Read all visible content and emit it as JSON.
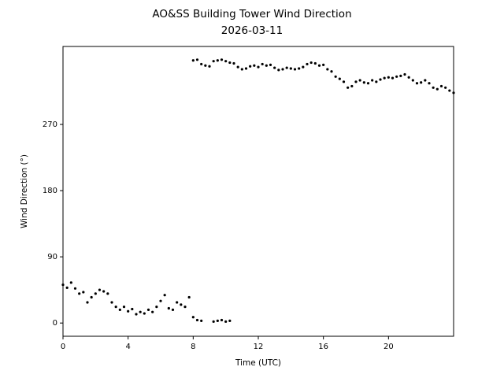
{
  "chart_data": {
    "type": "scatter",
    "title": "AO&SS Building Tower Wind Direction",
    "subtitle": "2026-03-11",
    "x_label": "Time (UTC)",
    "y_label": "Wind Direction (°)",
    "xlim": [
      0,
      24
    ],
    "ylim": [
      -18,
      376
    ],
    "xticks": [
      0,
      4,
      8,
      12,
      16,
      20
    ],
    "yticks": [
      0,
      90,
      180,
      270
    ],
    "series": [
      {
        "color": "#000000",
        "x": [
          0,
          0.25,
          0.5,
          0.75,
          1,
          1.25,
          1.5,
          1.75,
          2,
          2.25,
          2.5,
          2.75,
          3,
          3.25,
          3.5,
          3.75,
          4,
          4.25,
          4.5,
          4.75,
          5,
          5.25,
          5.5,
          5.75,
          6,
          6.25,
          6.5,
          6.75,
          7,
          7.25,
          7.5,
          7.75,
          8,
          8.25,
          8.5,
          9.25,
          9.5,
          9.75,
          10,
          10.25,
          8,
          8.25,
          8.5,
          8.75,
          9,
          9.25,
          9.5,
          9.75,
          10,
          10.25,
          10.5,
          10.75,
          11,
          11.25,
          11.5,
          11.75,
          12,
          12.25,
          12.5,
          12.75,
          13,
          13.25,
          13.5,
          13.75,
          14,
          14.25,
          14.5,
          14.75,
          15,
          15.25,
          15.5,
          15.75,
          16,
          16.25,
          16.5,
          16.75,
          17,
          17.25,
          17.5,
          17.75,
          18,
          18.25,
          18.5,
          18.75,
          19,
          19.25,
          19.5,
          19.75,
          20,
          20.25,
          20.5,
          20.75,
          21,
          21.25,
          21.5,
          21.75,
          22,
          22.25,
          22.5,
          22.75,
          23,
          23.25,
          23.5,
          23.75,
          24
        ],
        "values": [
          52,
          48,
          55,
          47,
          40,
          42,
          28,
          35,
          40,
          45,
          43,
          40,
          28,
          22,
          18,
          22,
          16,
          19,
          12,
          15,
          13,
          18,
          15,
          22,
          30,
          38,
          20,
          18,
          28,
          25,
          22,
          35,
          8,
          4,
          3,
          2,
          3,
          4,
          2,
          3,
          357,
          358,
          352,
          350,
          349,
          356,
          357,
          358,
          356,
          354,
          353,
          348,
          345,
          346,
          349,
          350,
          348,
          352,
          350,
          351,
          347,
          344,
          345,
          347,
          346,
          345,
          346,
          348,
          352,
          354,
          353,
          350,
          351,
          345,
          342,
          335,
          332,
          328,
          320,
          322,
          328,
          330,
          327,
          326,
          330,
          328,
          331,
          333,
          334,
          333,
          335,
          336,
          338,
          334,
          330,
          326,
          327,
          330,
          326,
          320,
          318,
          322,
          320,
          316,
          313
        ]
      }
    ]
  }
}
